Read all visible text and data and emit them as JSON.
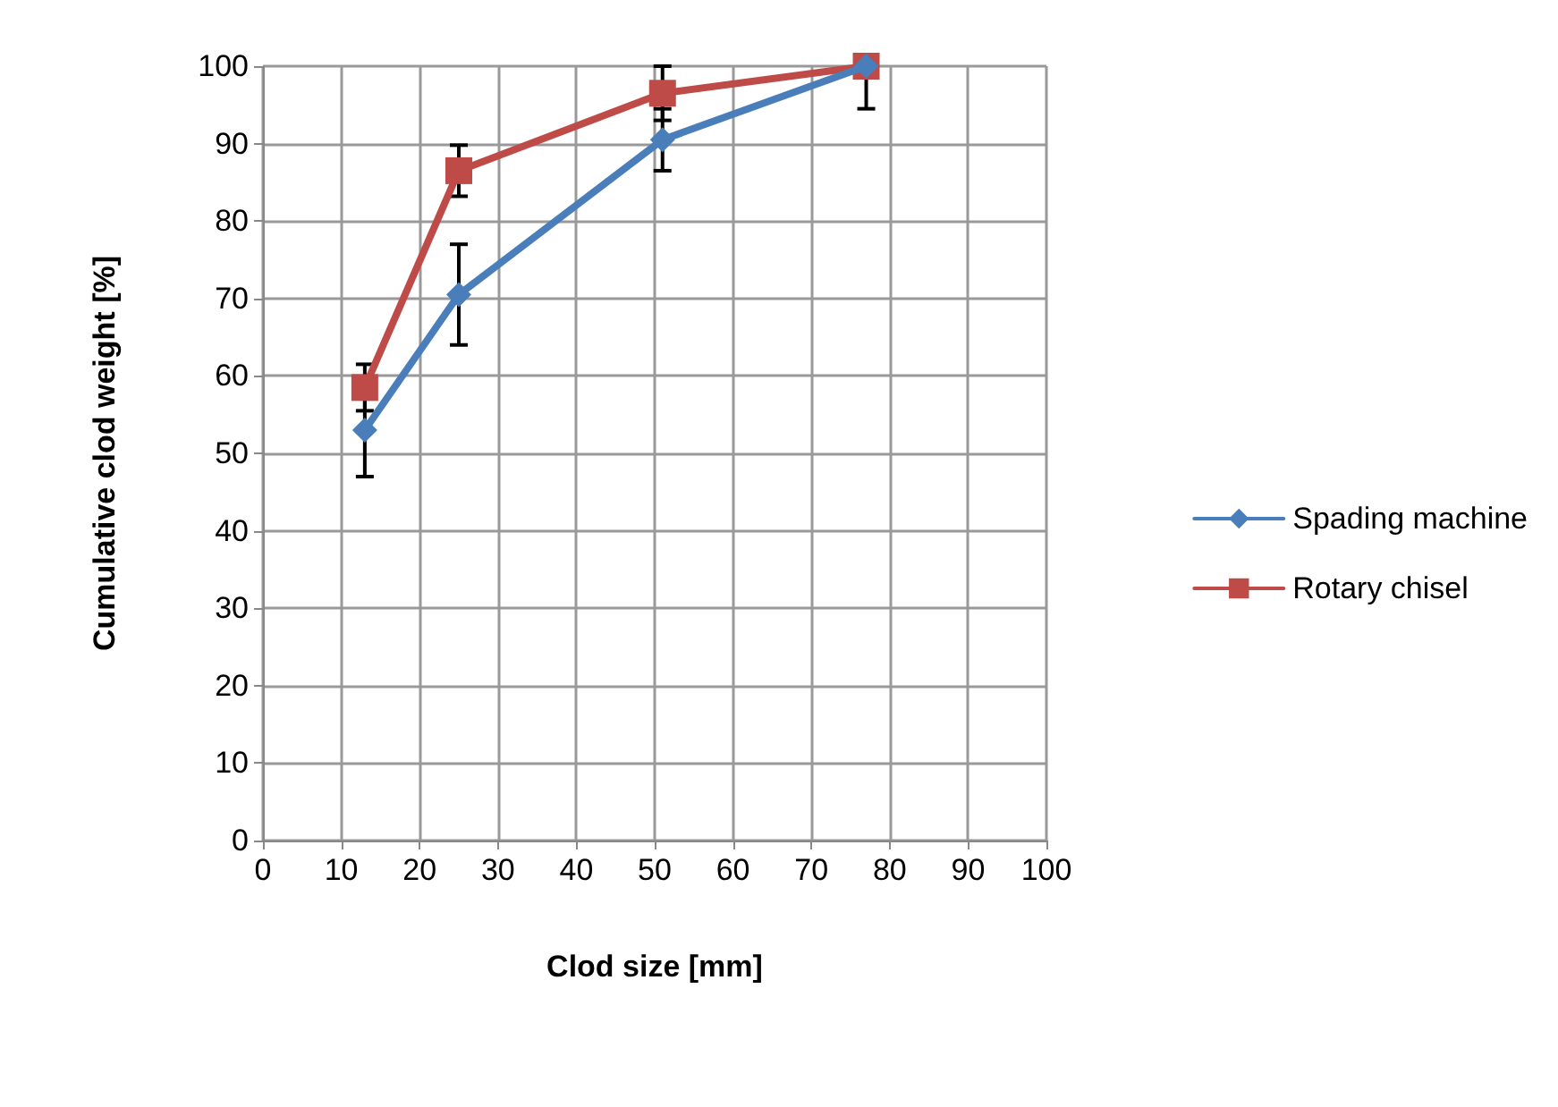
{
  "chart_data": {
    "type": "line",
    "xlabel": "Clod size [mm]",
    "ylabel": "Cumulative clod weight [%]",
    "x": [
      13,
      25,
      51,
      77
    ],
    "series": [
      {
        "name": "Spading machine",
        "color": "#4a7ebb",
        "marker": "diamond",
        "values": [
          53,
          70.5,
          90.5,
          100
        ],
        "errors": [
          6,
          6.5,
          4,
          [
            94.5,
            100
          ]
        ]
      },
      {
        "name": "Rotary chisel",
        "color": "#be4b48",
        "marker": "square",
        "values": [
          58.5,
          86.5,
          96.5,
          100
        ],
        "errors": [
          3,
          3.3,
          [
            93,
            100
          ],
          null
        ]
      }
    ],
    "xlim": [
      0,
      100
    ],
    "xticks": [
      0,
      10,
      20,
      30,
      40,
      50,
      60,
      70,
      80,
      90,
      100
    ],
    "ylim": [
      0,
      100
    ],
    "yticks": [
      0,
      10,
      20,
      30,
      40,
      50,
      60,
      70,
      80,
      90,
      100
    ],
    "grid": true,
    "legend": "right"
  }
}
